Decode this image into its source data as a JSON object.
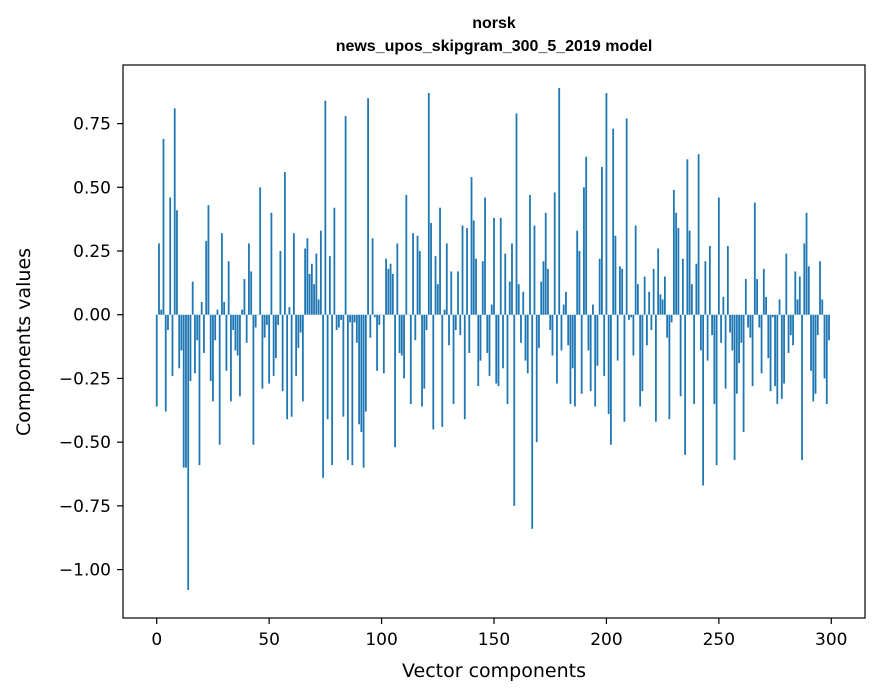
{
  "chart_data": {
    "type": "bar",
    "title": "norsk",
    "subtitle": "news_upos_skipgram_300_5_2019 model",
    "xlabel": "Vector components",
    "ylabel": "Components values",
    "xlim": [
      -15,
      315
    ],
    "ylim": [
      -1.19,
      0.98
    ],
    "xticks": [
      0,
      50,
      100,
      150,
      200,
      250,
      300
    ],
    "xtick_labels": [
      "0",
      "50",
      "100",
      "150",
      "200",
      "250",
      "300"
    ],
    "yticks": [
      0.75,
      0.5,
      0.25,
      0.0,
      -0.25,
      -0.5,
      -0.75,
      -1.0
    ],
    "ytick_labels": [
      "0.75",
      "0.50",
      "0.25",
      "0.00",
      "−0.25",
      "−0.50",
      "−0.75",
      "−1.00"
    ],
    "grid": false,
    "bar_color": "#1f77b4",
    "x": [
      0,
      1,
      2,
      3,
      4,
      5,
      6,
      7,
      8,
      9,
      10,
      11,
      12,
      13,
      14,
      15,
      16,
      17,
      18,
      19,
      20,
      21,
      22,
      23,
      24,
      25,
      26,
      27,
      28,
      29,
      30,
      31,
      32,
      33,
      34,
      35,
      36,
      37,
      38,
      39,
      40,
      41,
      42,
      43,
      44,
      45,
      46,
      47,
      48,
      49,
      50,
      51,
      52,
      53,
      54,
      55,
      56,
      57,
      58,
      59,
      60,
      61,
      62,
      63,
      64,
      65,
      66,
      67,
      68,
      69,
      70,
      71,
      72,
      73,
      74,
      75,
      76,
      77,
      78,
      79,
      80,
      81,
      82,
      83,
      84,
      85,
      86,
      87,
      88,
      89,
      90,
      91,
      92,
      93,
      94,
      95,
      96,
      97,
      98,
      99,
      100,
      101,
      102,
      103,
      104,
      105,
      106,
      107,
      108,
      109,
      110,
      111,
      112,
      113,
      114,
      115,
      116,
      117,
      118,
      119,
      120,
      121,
      122,
      123,
      124,
      125,
      126,
      127,
      128,
      129,
      130,
      131,
      132,
      133,
      134,
      135,
      136,
      137,
      138,
      139,
      140,
      141,
      142,
      143,
      144,
      145,
      146,
      147,
      148,
      149,
      150,
      151,
      152,
      153,
      154,
      155,
      156,
      157,
      158,
      159,
      160,
      161,
      162,
      163,
      164,
      165,
      166,
      167,
      168,
      169,
      170,
      171,
      172,
      173,
      174,
      175,
      176,
      177,
      178,
      179,
      180,
      181,
      182,
      183,
      184,
      185,
      186,
      187,
      188,
      189,
      190,
      191,
      192,
      193,
      194,
      195,
      196,
      197,
      198,
      199,
      200,
      201,
      202,
      203,
      204,
      205,
      206,
      207,
      208,
      209,
      210,
      211,
      212,
      213,
      214,
      215,
      216,
      217,
      218,
      219,
      220,
      221,
      222,
      223,
      224,
      225,
      226,
      227,
      228,
      229,
      230,
      231,
      232,
      233,
      234,
      235,
      236,
      237,
      238,
      239,
      240,
      241,
      242,
      243,
      244,
      245,
      246,
      247,
      248,
      249,
      250,
      251,
      252,
      253,
      254,
      255,
      256,
      257,
      258,
      259,
      260,
      261,
      262,
      263,
      264,
      265,
      266,
      267,
      268,
      269,
      270,
      271,
      272,
      273,
      274,
      275,
      276,
      277,
      278,
      279,
      280,
      281,
      282,
      283,
      284,
      285,
      286,
      287,
      288,
      289,
      290,
      291,
      292,
      293,
      294,
      295,
      296,
      297,
      298,
      299
    ],
    "values": [
      -0.36,
      0.28,
      0.02,
      0.69,
      -0.38,
      -0.06,
      0.46,
      -0.24,
      0.81,
      0.41,
      -0.21,
      -0.14,
      -0.6,
      -0.6,
      -1.08,
      -0.26,
      0.13,
      -0.23,
      -0.1,
      -0.59,
      0.05,
      -0.15,
      0.29,
      0.43,
      -0.26,
      -0.34,
      -0.1,
      0.02,
      -0.51,
      0.32,
      0.05,
      -0.22,
      0.21,
      -0.34,
      -0.06,
      -0.14,
      -0.16,
      -0.32,
      0.02,
      0.14,
      -0.11,
      0.28,
      0.17,
      -0.51,
      -0.05,
      0.0,
      0.5,
      -0.29,
      -0.09,
      -0.04,
      -0.27,
      0.4,
      -0.24,
      -0.17,
      -0.04,
      0.25,
      -0.3,
      0.56,
      -0.41,
      0.03,
      -0.4,
      0.32,
      -0.24,
      -0.13,
      -0.07,
      -0.34,
      0.26,
      0.3,
      0.16,
      0.2,
      0.12,
      0.24,
      0.06,
      0.33,
      -0.64,
      0.84,
      -0.41,
      0.23,
      -0.59,
      0.42,
      -0.06,
      -0.05,
      -0.02,
      -0.4,
      0.78,
      -0.57,
      -0.03,
      -0.59,
      -0.03,
      -0.11,
      -0.43,
      -0.46,
      -0.6,
      -0.38,
      0.85,
      -0.09,
      0.3,
      -0.01,
      -0.22,
      -0.04,
      0.0,
      -0.23,
      0.22,
      0.18,
      0.2,
      0.16,
      -0.52,
      0.28,
      -0.15,
      -0.16,
      -0.25,
      0.47,
      0.0,
      -0.35,
      0.32,
      -0.1,
      0.31,
      0.25,
      -0.36,
      -0.29,
      -0.06,
      0.87,
      0.36,
      -0.45,
      0.23,
      0.12,
      0.42,
      -0.44,
      0.02,
      0.28,
      -0.12,
      0.17,
      -0.35,
      -0.06,
      0.17,
      -0.08,
      0.35,
      -0.41,
      0.34,
      -0.15,
      0.54,
      0.37,
      0.22,
      -0.28,
      -0.18,
      0.21,
      0.46,
      -0.15,
      -0.24,
      0.04,
      0.38,
      -0.27,
      -0.28,
      0.38,
      -0.21,
      0.24,
      -0.35,
      0.13,
      0.28,
      -0.75,
      0.79,
      0.12,
      -0.11,
      0.09,
      -0.18,
      -0.23,
      0.47,
      -0.84,
      0.35,
      -0.5,
      -0.13,
      0.13,
      0.21,
      0.4,
      0.18,
      -0.06,
      -0.16,
      0.48,
      -0.27,
      0.89,
      -0.14,
      0.04,
      0.09,
      -0.12,
      -0.35,
      -0.21,
      -0.36,
      0.33,
      0.25,
      -0.31,
      0.5,
      0.62,
      -0.14,
      -0.3,
      0.04,
      -0.36,
      -0.2,
      0.22,
      0.58,
      -0.24,
      0.87,
      -0.39,
      -0.51,
      0.73,
      0.31,
      -0.18,
      0.19,
      0.18,
      -0.42,
      0.77,
      -0.02,
      -0.01,
      -0.16,
      0.35,
      0.12,
      -0.36,
      -0.3,
      0.15,
      -0.12,
      0.09,
      -0.06,
      0.18,
      -0.42,
      0.26,
      0.08,
      0.06,
      0.15,
      -0.09,
      -0.41,
      -0.03,
      0.49,
      0.4,
      0.34,
      -0.32,
      0.22,
      -0.55,
      0.61,
      0.33,
      0.12,
      -0.35,
      0.2,
      0.63,
      -0.14,
      -0.67,
      0.21,
      -0.18,
      0.27,
      -0.08,
      -0.35,
      -0.59,
      0.46,
      -0.11,
      0.07,
      -0.29,
      0.27,
      -0.07,
      -0.14,
      -0.57,
      -0.31,
      -0.19,
      -0.11,
      -0.46,
      0.14,
      -0.05,
      -0.09,
      -0.28,
      0.44,
      0.14,
      -0.05,
      -0.23,
      0.18,
      0.07,
      -0.17,
      -0.3,
      -0.01,
      -0.28,
      -0.35,
      0.06,
      -0.33,
      -0.27,
      0.24,
      -0.15,
      -0.08,
      -0.12,
      0.17,
      0.06,
      0.15,
      -0.57,
      0.28,
      0.4,
      0.19,
      -0.22,
      -0.34,
      -0.31,
      -0.08,
      0.21,
      0.06,
      -0.25,
      -0.35,
      -0.1
    ]
  }
}
